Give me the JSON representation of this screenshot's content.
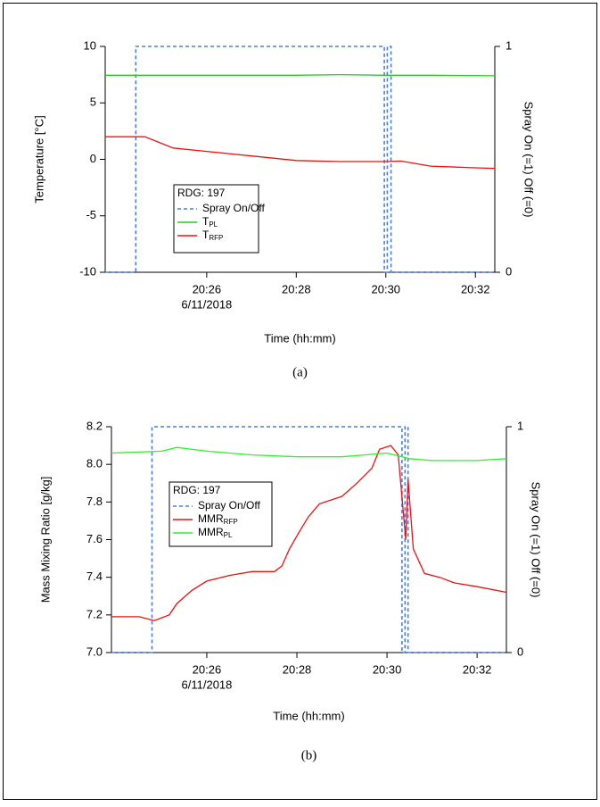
{
  "chart_data": [
    {
      "type": "line",
      "caption": "(a)",
      "xlabel": "Time (hh:mm)",
      "ylabel": "Temperature [°C]",
      "y2label": "Spray On (=1) Off (=0)",
      "xlim": [
        "20:23:44",
        "20:32:26"
      ],
      "xticks": [
        "20:26",
        "20:28",
        "20:30",
        "20:32"
      ],
      "xtick_sublabel": "6/11/2018",
      "ylim": [
        -10,
        10
      ],
      "yticks": [
        -10,
        -5,
        0,
        5,
        10
      ],
      "y2lim": [
        0,
        1
      ],
      "y2ticks": [
        0,
        1
      ],
      "legend_title": "RDG: 197",
      "series": [
        {
          "name": "Spray On/Off",
          "color": "#4a7fe0",
          "line_style": "dashed",
          "axis": "y2",
          "x": [
            "20:23:44",
            "20:24:25",
            "20:24:25",
            "20:29:58",
            "20:29:58",
            "20:30:02",
            "20:30:02",
            "20:30:07",
            "20:30:07",
            "20:32:26"
          ],
          "values": [
            0,
            0,
            1,
            1,
            0,
            0,
            1,
            1,
            0,
            0
          ]
        },
        {
          "name": "T",
          "name_sub": "PL",
          "color": "#22cc22",
          "line_style": "solid",
          "x": [
            "20:23:44",
            "20:26:00",
            "20:28:00",
            "20:29:00",
            "20:30:00",
            "20:31:00",
            "20:32:26"
          ],
          "values": [
            7.45,
            7.45,
            7.45,
            7.5,
            7.45,
            7.45,
            7.4
          ]
        },
        {
          "name": "T",
          "name_sub": "RFP",
          "color": "#ee1111",
          "line_style": "solid",
          "x": [
            "20:23:44",
            "20:24:37",
            "20:25:15",
            "20:26:00",
            "20:27:00",
            "20:28:00",
            "20:29:00",
            "20:30:00",
            "20:30:20",
            "20:31:00",
            "20:32:00",
            "20:32:26"
          ],
          "values": [
            2.0,
            2.0,
            1.0,
            0.7,
            0.3,
            -0.1,
            -0.2,
            -0.2,
            -0.15,
            -0.6,
            -0.75,
            -0.8
          ]
        }
      ]
    },
    {
      "type": "line",
      "caption": "(b)",
      "xlabel": "Time (hh:mm)",
      "ylabel": "Mass Mixing Ratio [g/kg]",
      "y2label": "Spray On (=1) Off (=0)",
      "xlim": [
        "20:23:53",
        "20:32:39"
      ],
      "xticks": [
        "20:26",
        "20:28",
        "20:30",
        "20:32"
      ],
      "xtick_sublabel": "6/11/2018",
      "ylim": [
        7.0,
        8.2
      ],
      "yticks": [
        {
          "value": 7,
          "label": "7.0"
        },
        7.2,
        7.4,
        7.6,
        7.8,
        {
          "value": 8,
          "label": "8.0"
        },
        8.2
      ],
      "y2lim": [
        0,
        1
      ],
      "y2ticks": [
        0,
        1
      ],
      "legend_title": "RDG: 197",
      "series": [
        {
          "name": "Spray On/Off",
          "color": "#4a7fe0",
          "line_style": "dashed",
          "axis": "y2",
          "x": [
            "20:23:53",
            "20:24:47",
            "20:24:47",
            "20:30:20",
            "20:30:20",
            "20:30:24",
            "20:30:24",
            "20:30:28",
            "20:30:28",
            "20:32:39"
          ],
          "values": [
            0,
            0,
            1,
            1,
            0,
            0,
            1,
            1,
            0,
            0
          ]
        },
        {
          "name": "MMR",
          "name_sub": "RFP",
          "color": "#ee1111",
          "line_style": "solid",
          "x": [
            "20:23:53",
            "20:24:30",
            "20:24:50",
            "20:25:10",
            "20:25:20",
            "20:25:40",
            "20:26:00",
            "20:26:30",
            "20:27:00",
            "20:27:30",
            "20:27:40",
            "20:27:50",
            "20:28:00",
            "20:28:15",
            "20:28:30",
            "20:29:00",
            "20:29:20",
            "20:29:40",
            "20:29:50",
            "20:30:05",
            "20:30:15",
            "20:30:25",
            "20:30:28",
            "20:30:35",
            "20:30:50",
            "20:31:10",
            "20:31:30",
            "20:32:00",
            "20:32:39"
          ],
          "values": [
            7.19,
            7.19,
            7.17,
            7.2,
            7.26,
            7.33,
            7.38,
            7.41,
            7.43,
            7.43,
            7.46,
            7.55,
            7.62,
            7.72,
            7.79,
            7.83,
            7.9,
            7.98,
            8.08,
            8.1,
            8.05,
            7.6,
            7.92,
            7.55,
            7.42,
            7.4,
            7.37,
            7.35,
            7.32
          ]
        },
        {
          "name": "MMR",
          "name_sub": "PL",
          "color": "#33ee33",
          "line_style": "solid",
          "x": [
            "20:23:53",
            "20:25:00",
            "20:25:20",
            "20:26:00",
            "20:27:00",
            "20:28:00",
            "20:29:00",
            "20:29:30",
            "20:30:00",
            "20:30:30",
            "20:31:00",
            "20:32:00",
            "20:32:39"
          ],
          "values": [
            8.06,
            8.07,
            8.09,
            8.07,
            8.05,
            8.04,
            8.04,
            8.05,
            8.06,
            8.03,
            8.02,
            8.02,
            8.03
          ]
        }
      ]
    }
  ]
}
